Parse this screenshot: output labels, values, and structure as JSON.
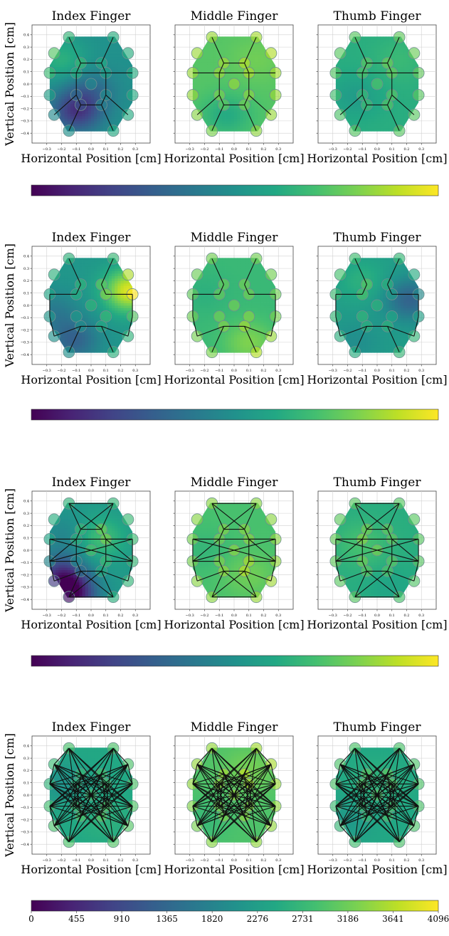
{
  "chart_data": {
    "type": "heatmap",
    "panel_titles": [
      "Index Finger",
      "Middle Finger",
      "Thumb Finger"
    ],
    "xlabel": "Horizontal Position [cm]",
    "ylabel": "Vertical Position [cm]",
    "xlim": [
      -0.4,
      0.4
    ],
    "ylim": [
      -0.48,
      0.48
    ],
    "x_ticks": [
      -0.3,
      -0.2,
      -0.1,
      0.0,
      0.1,
      0.2,
      0.3
    ],
    "x_tick_labels": [
      "−0.3",
      "−0.2",
      "−0.1",
      "0.0",
      "0.1",
      "0.2",
      "0.3"
    ],
    "y_ticks": [
      -0.4,
      -0.3,
      -0.2,
      -0.1,
      0.0,
      0.1,
      0.2,
      0.3,
      0.4
    ],
    "y_tick_labels": [
      "−0.4",
      "−0.3",
      "−0.2",
      "−0.1",
      "0.0",
      "0.1",
      "0.2",
      "0.3",
      "0.4"
    ],
    "grid": true,
    "colormap": "viridis",
    "colorbar": {
      "range": [
        0,
        4096
      ],
      "ticks": [
        0,
        455,
        910,
        1365,
        1820,
        2276,
        2731,
        3186,
        3641,
        4096
      ],
      "tick_labels": [
        "0",
        "455",
        "910",
        "1365",
        "1820",
        "2276",
        "2731",
        "3186",
        "3641",
        "4096"
      ]
    },
    "electrodes": [
      {
        "x": -0.15,
        "y": 0.38
      },
      {
        "x": 0.15,
        "y": 0.38
      },
      {
        "x": -0.25,
        "y": 0.25
      },
      {
        "x": 0.25,
        "y": 0.25
      },
      {
        "x": -0.07,
        "y": 0.17
      },
      {
        "x": 0.07,
        "y": 0.17
      },
      {
        "x": -0.28,
        "y": 0.09
      },
      {
        "x": -0.1,
        "y": 0.09
      },
      {
        "x": 0.1,
        "y": 0.09
      },
      {
        "x": 0.28,
        "y": 0.09
      },
      {
        "x": 0.0,
        "y": 0.0
      },
      {
        "x": -0.28,
        "y": -0.09
      },
      {
        "x": -0.1,
        "y": -0.09
      },
      {
        "x": 0.1,
        "y": -0.09
      },
      {
        "x": 0.28,
        "y": -0.09
      },
      {
        "x": -0.07,
        "y": -0.17
      },
      {
        "x": 0.07,
        "y": -0.17
      },
      {
        "x": -0.25,
        "y": -0.25
      },
      {
        "x": 0.25,
        "y": -0.25
      },
      {
        "x": -0.15,
        "y": -0.38
      },
      {
        "x": 0.15,
        "y": -0.38
      }
    ],
    "rows": [
      {
        "panels": [
          {
            "title": "Index Finger",
            "base": 2050,
            "hotspots": [
              {
                "x": -0.1,
                "y": -0.22,
                "value": 700
              },
              {
                "x": 0.0,
                "y": -0.05,
                "value": 1500
              },
              {
                "x": -0.2,
                "y": 0.2,
                "value": 2600
              }
            ]
          },
          {
            "title": "Middle Finger",
            "base": 3000,
            "hotspots": [
              {
                "x": -0.05,
                "y": -0.25,
                "value": 2500
              },
              {
                "x": 0.15,
                "y": 0.2,
                "value": 3200
              }
            ]
          },
          {
            "title": "Thumb Finger",
            "base": 2550,
            "hotspots": [
              {
                "x": -0.15,
                "y": -0.1,
                "value": 2250
              },
              {
                "x": 0.15,
                "y": 0.2,
                "value": 2750
              }
            ]
          }
        ],
        "edges": [
          [
            0,
            4
          ],
          [
            1,
            5
          ],
          [
            4,
            7
          ],
          [
            5,
            8
          ],
          [
            4,
            5
          ],
          [
            6,
            9
          ],
          [
            7,
            12
          ],
          [
            8,
            13
          ],
          [
            12,
            15
          ],
          [
            13,
            16
          ],
          [
            15,
            16
          ],
          [
            15,
            19
          ],
          [
            16,
            20
          ],
          [
            12,
            17
          ],
          [
            13,
            18
          ]
        ]
      },
      {
        "panels": [
          {
            "title": "Index Finger",
            "base": 2150,
            "hotspots": [
              {
                "x": 0.26,
                "y": 0.12,
                "value": 3900
              },
              {
                "x": -0.12,
                "y": -0.28,
                "value": 1300
              },
              {
                "x": -0.25,
                "y": -0.05,
                "value": 1700
              }
            ]
          },
          {
            "title": "Middle Finger",
            "base": 2750,
            "hotspots": [
              {
                "x": 0.1,
                "y": -0.3,
                "value": 3300
              },
              {
                "x": -0.2,
                "y": 0.1,
                "value": 2600
              }
            ]
          },
          {
            "title": "Thumb Finger",
            "base": 2250,
            "hotspots": [
              {
                "x": 0.22,
                "y": 0.05,
                "value": 1300
              },
              {
                "x": -0.1,
                "y": 0.2,
                "value": 2600
              },
              {
                "x": -0.15,
                "y": -0.3,
                "value": 2000
              }
            ]
          }
        ],
        "edges": [
          [
            0,
            4
          ],
          [
            1,
            5
          ],
          [
            4,
            7
          ],
          [
            5,
            8
          ],
          [
            6,
            7
          ],
          [
            8,
            9
          ],
          [
            6,
            11
          ],
          [
            9,
            14
          ],
          [
            11,
            17
          ],
          [
            14,
            18
          ],
          [
            17,
            15
          ],
          [
            18,
            16
          ],
          [
            15,
            16
          ],
          [
            15,
            19
          ],
          [
            16,
            20
          ]
        ]
      },
      {
        "panels": [
          {
            "title": "Index Finger",
            "base": 2200,
            "hotspots": [
              {
                "x": -0.14,
                "y": -0.37,
                "value": 150
              },
              {
                "x": -0.2,
                "y": -0.2,
                "value": 800
              },
              {
                "x": 0.05,
                "y": 0.1,
                "value": 2900
              },
              {
                "x": -0.15,
                "y": 0.12,
                "value": 1800
              }
            ]
          },
          {
            "title": "Middle Finger",
            "base": 2900,
            "hotspots": [
              {
                "x": 0.1,
                "y": -0.2,
                "value": 3200
              },
              {
                "x": -0.2,
                "y": 0.0,
                "value": 2700
              }
            ]
          },
          {
            "title": "Thumb Finger",
            "base": 2550,
            "hotspots": [
              {
                "x": -0.1,
                "y": 0.05,
                "value": 2900
              },
              {
                "x": 0.1,
                "y": -0.3,
                "value": 2400
              }
            ]
          }
        ],
        "edges": [
          [
            0,
            1
          ],
          [
            0,
            5
          ],
          [
            1,
            4
          ],
          [
            0,
            4
          ],
          [
            1,
            5
          ],
          [
            4,
            5
          ],
          [
            4,
            7
          ],
          [
            5,
            8
          ],
          [
            6,
            7
          ],
          [
            8,
            9
          ],
          [
            6,
            9
          ],
          [
            7,
            12
          ],
          [
            8,
            13
          ],
          [
            6,
            11
          ],
          [
            9,
            14
          ],
          [
            7,
            11
          ],
          [
            8,
            14
          ],
          [
            11,
            12
          ],
          [
            13,
            14
          ],
          [
            12,
            15
          ],
          [
            13,
            16
          ],
          [
            15,
            16
          ],
          [
            15,
            19
          ],
          [
            16,
            20
          ],
          [
            15,
            20
          ],
          [
            16,
            19
          ],
          [
            19,
            20
          ],
          [
            11,
            17
          ],
          [
            14,
            18
          ],
          [
            17,
            15
          ],
          [
            18,
            16
          ],
          [
            6,
            14
          ],
          [
            9,
            11
          ]
        ]
      },
      {
        "panels": [
          {
            "title": "Index Finger",
            "base": 2450,
            "hotspots": [
              {
                "x": -0.2,
                "y": 0.1,
                "value": 2100
              },
              {
                "x": 0.1,
                "y": -0.2,
                "value": 2600
              }
            ]
          },
          {
            "title": "Middle Finger",
            "base": 2950,
            "hotspots": [
              {
                "x": 0.1,
                "y": 0.2,
                "value": 3250
              },
              {
                "x": -0.2,
                "y": -0.2,
                "value": 2750
              }
            ]
          },
          {
            "title": "Thumb Finger",
            "base": 2450,
            "hotspots": [
              {
                "x": 0.0,
                "y": 0.1,
                "value": 2650
              },
              {
                "x": -0.2,
                "y": -0.2,
                "value": 2200
              }
            ]
          }
        ],
        "edges": "dense"
      }
    ]
  }
}
